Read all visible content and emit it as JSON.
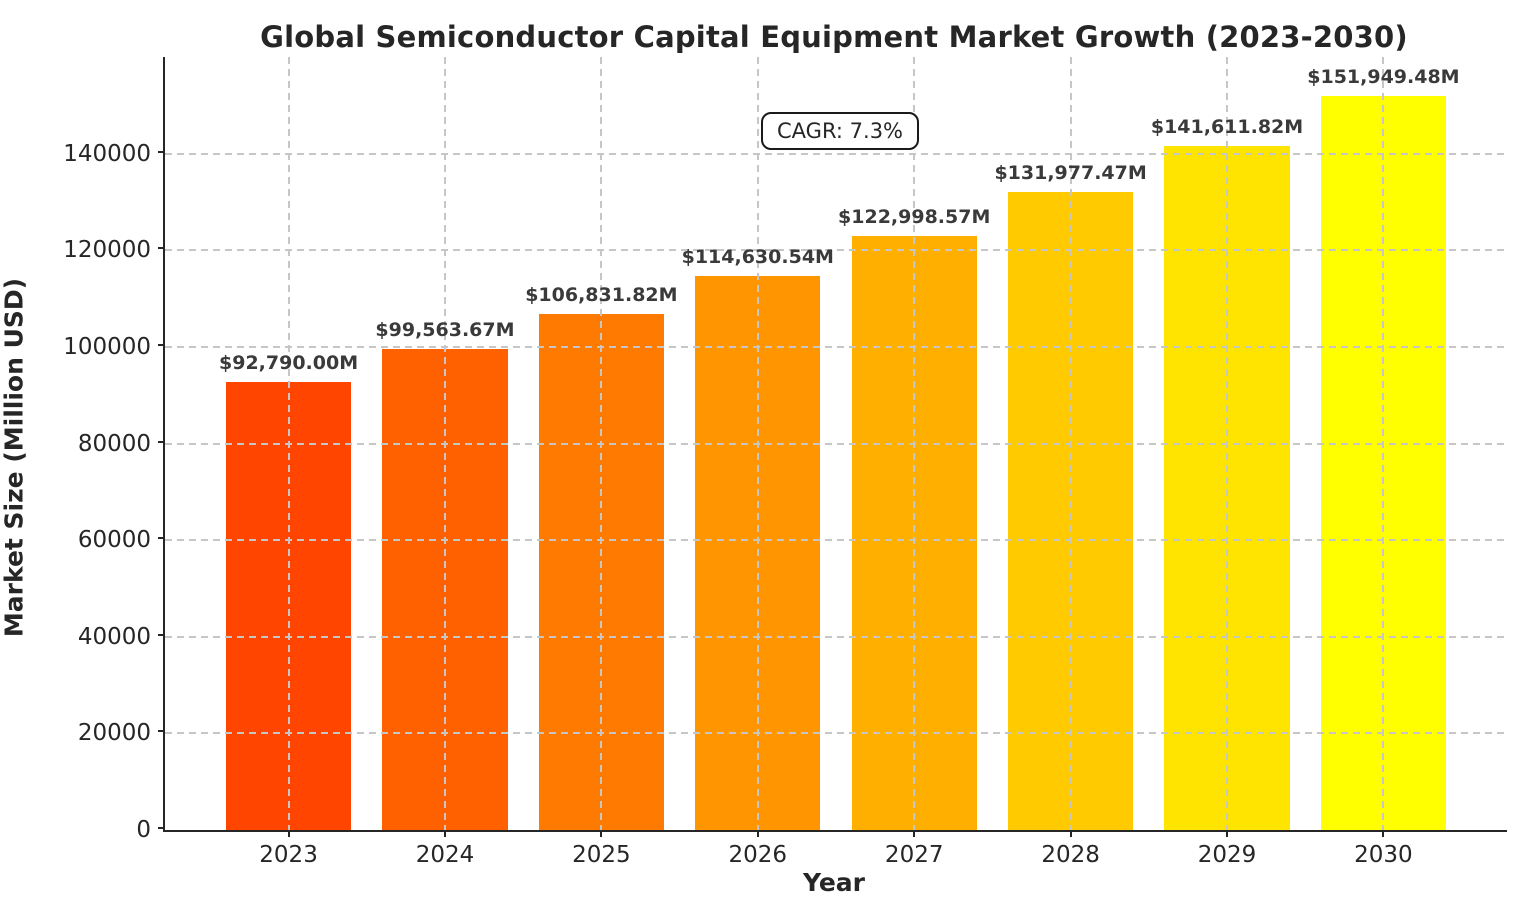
{
  "chart_data": {
    "type": "bar",
    "title": "Global Semiconductor Capital Equipment Market Growth (2023-2030)",
    "xlabel": "Year",
    "ylabel": "Market Size (Million USD)",
    "categories": [
      "2023",
      "2024",
      "2025",
      "2026",
      "2027",
      "2028",
      "2029",
      "2030"
    ],
    "values": [
      92790.0,
      99563.67,
      106831.82,
      114630.54,
      122998.57,
      131977.47,
      141611.82,
      151949.48
    ],
    "bar_labels": [
      "$92,790.00M",
      "$99,563.67M",
      "$106,831.82M",
      "$114,630.54M",
      "$122,998.57M",
      "$131,977.47M",
      "$141,611.82M",
      "$151,949.48M"
    ],
    "bar_colors": [
      "#FF4500",
      "#FF6000",
      "#FF7A00",
      "#FF9500",
      "#FFAF00",
      "#FFCA00",
      "#FFE400",
      "#FFFF00"
    ],
    "ylim": [
      0,
      160000
    ],
    "yticks": [
      0,
      20000,
      40000,
      60000,
      80000,
      100000,
      120000,
      140000
    ],
    "ytick_labels": [
      "0",
      "20000",
      "40000",
      "60000",
      "80000",
      "100000",
      "120000",
      "140000"
    ],
    "grid": "dashed gridlines on both axes, light gray, drawn over bars",
    "legend": "none",
    "annotation": {
      "text": "CAGR: 7.3%"
    },
    "colors": {
      "background": "#ffffff",
      "spine": "#262626",
      "grid": "#c6c6c6",
      "title_text": "#262626",
      "bar_label_text": "#3a3a3a",
      "annotation_border": "#1a1a1a"
    }
  }
}
